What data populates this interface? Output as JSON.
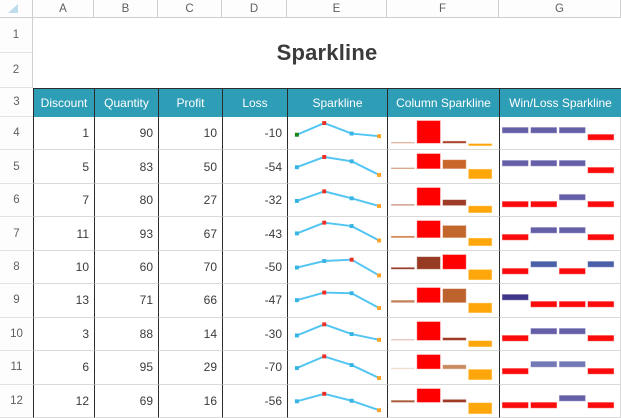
{
  "title": "Sparkline",
  "sheet": {
    "column_letters": [
      "A",
      "B",
      "C",
      "D",
      "E",
      "F",
      "G"
    ],
    "row_numbers": [
      "1",
      "2",
      "3",
      "4",
      "5",
      "6",
      "7",
      "8",
      "9",
      "10",
      "11",
      "12"
    ],
    "corner_icon": "select-all-triangle"
  },
  "table": {
    "headers": [
      "Discount",
      "Quantity",
      "Profit",
      "Loss",
      "Sparkline",
      "Column Sparkline",
      "Win/Loss Sparkline"
    ],
    "rows": [
      {
        "row": 4,
        "discount": 1,
        "quantity": 90,
        "profit": 10,
        "loss": -10,
        "line_first": "green",
        "col_colors": [
          "#D09070",
          "#FF0000",
          "#A8402A",
          "#FFA60A"
        ],
        "winloss": [
          "#655FA8",
          "#655FA8",
          "#655FA8",
          "#FB0B0B"
        ]
      },
      {
        "row": 5,
        "discount": 5,
        "quantity": 83,
        "profit": 50,
        "loss": -54,
        "col_colors": [
          "#C87B4E",
          "#FF0000",
          "#C9662B",
          "#FFA60A"
        ],
        "winloss": [
          "#655FA8",
          "#655FA8",
          "#655FA8",
          "#FB0B0B"
        ]
      },
      {
        "row": 6,
        "discount": 7,
        "quantity": 80,
        "profit": 27,
        "loss": -32,
        "col_colors": [
          "#C08068",
          "#FF0000",
          "#9E3A26",
          "#FFA60A"
        ],
        "winloss": [
          "#FB0B0B",
          "#FB0B0B",
          "#655FA8",
          "#FB0B0B"
        ]
      },
      {
        "row": 7,
        "discount": 11,
        "quantity": 93,
        "profit": 67,
        "loss": -43,
        "col_colors": [
          "#CC7A40",
          "#FF0000",
          "#C2662C",
          "#FFA60A"
        ],
        "winloss": [
          "#FB0B0B",
          "#655FA8",
          "#655FA8",
          "#FB0B0B"
        ]
      },
      {
        "row": 8,
        "discount": 10,
        "quantity": 60,
        "profit": 70,
        "loss": -50,
        "col_colors": [
          "#8F3020",
          "#963A22",
          "#FF0000",
          "#FFA60A"
        ],
        "winloss": [
          "#FB0B0B",
          "#4A5FA8",
          "#FB0B0B",
          "#4A5FA8"
        ]
      },
      {
        "row": 9,
        "discount": 13,
        "quantity": 71,
        "profit": 66,
        "loss": -47,
        "col_colors": [
          "#C4825A",
          "#FF0000",
          "#BE632E",
          "#FFA60A"
        ],
        "winloss": [
          "#413788",
          "#FB0B0B",
          "#FB0B0B",
          "#FB0B0B"
        ]
      },
      {
        "row": 10,
        "discount": 3,
        "quantity": 88,
        "profit": 14,
        "loss": -30,
        "col_colors": [
          "#D8A898",
          "#FF0000",
          "#9E3A26",
          "#FFA60A"
        ],
        "winloss": [
          "#FB0B0B",
          "#655FA8",
          "#655FA8",
          "#FB0B0B"
        ]
      },
      {
        "row": 11,
        "discount": 6,
        "quantity": 95,
        "profit": 29,
        "loss": -70,
        "col_colors": [
          "#E8CFB5",
          "#FF0000",
          "#C98A5E",
          "#FFA60A"
        ],
        "winloss": [
          "#FB0B0B",
          "#7379B6",
          "#7379B6",
          "#FB0B0B"
        ]
      },
      {
        "row": 12,
        "discount": 12,
        "quantity": 69,
        "profit": 16,
        "loss": -56,
        "col_colors": [
          "#A85A38",
          "#FF0000",
          "#9E3A26",
          "#FFA60A"
        ],
        "winloss": [
          "#FB0B0B",
          "#FB0B0B",
          "#655FA8",
          "#FB0B0B"
        ]
      }
    ]
  },
  "colors": {
    "header_teal": "#2E9DB6",
    "header_text": "#FFFFFF",
    "grid_dark": "#2B2B2B",
    "grid_light": "#D9D9D9",
    "axis_header_border": "#CFCFCF",
    "cell_text": "#3A3A3A",
    "title_text": "#3B3B3B",
    "line_spark": "#52C5F2",
    "marker_high": "#ED2E24",
    "marker_last": "#FFA428",
    "marker_first_green": "#168716",
    "marker_normal": "#38B4E4",
    "bar_stroke": "rgba(255,255,255,0.5)",
    "select_all_triangle": "#BDDCF0"
  }
}
